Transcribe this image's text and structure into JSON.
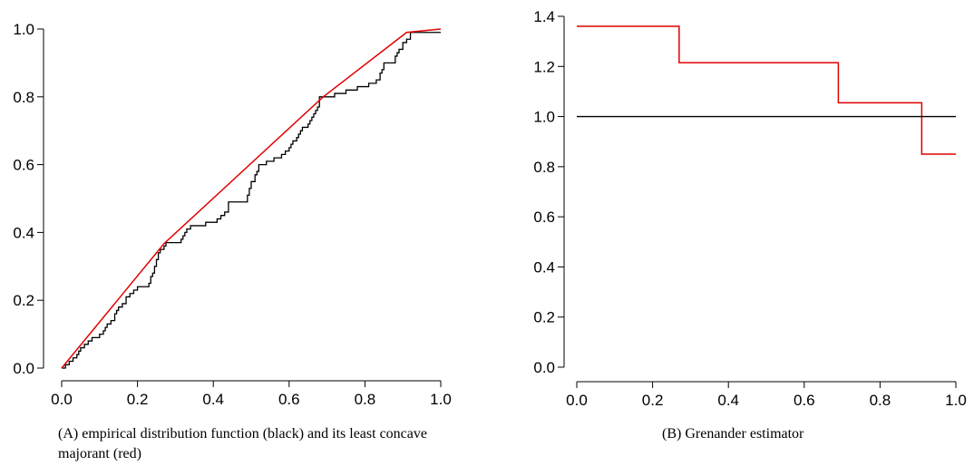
{
  "chart_data": [
    {
      "type": "line",
      "caption": "(A) empirical distribution function (black) and its least concave majorant (red)",
      "xlim": [
        0,
        1
      ],
      "ylim": [
        0,
        1
      ],
      "x_ticks": [
        "0.0",
        "0.2",
        "0.4",
        "0.6",
        "0.8",
        "1.0"
      ],
      "y_ticks": [
        "0.0",
        "0.2",
        "0.4",
        "0.6",
        "0.8",
        "1.0"
      ],
      "grid": false,
      "series": [
        {
          "color": "#000000",
          "step": true,
          "x": [
            0,
            0.01,
            0.015,
            0.02,
            0.025,
            0.03,
            0.04,
            0.045,
            0.05,
            0.06,
            0.07,
            0.08,
            0.09,
            0.1,
            0.11,
            0.115,
            0.12,
            0.13,
            0.14,
            0.145,
            0.15,
            0.16,
            0.17,
            0.18,
            0.19,
            0.2,
            0.21,
            0.23,
            0.235,
            0.24,
            0.245,
            0.25,
            0.255,
            0.26,
            0.27,
            0.275,
            0.28,
            0.31,
            0.315,
            0.32,
            0.325,
            0.33,
            0.34,
            0.37,
            0.38,
            0.39,
            0.4,
            0.41,
            0.42,
            0.43,
            0.44,
            0.47,
            0.48,
            0.49,
            0.495,
            0.5,
            0.51,
            0.515,
            0.52,
            0.53,
            0.54,
            0.55,
            0.56,
            0.57,
            0.58,
            0.59,
            0.6,
            0.605,
            0.61,
            0.62,
            0.625,
            0.63,
            0.635,
            0.64,
            0.645,
            0.65,
            0.655,
            0.66,
            0.665,
            0.67,
            0.675,
            0.68,
            0.69,
            0.71,
            0.72,
            0.74,
            0.75,
            0.77,
            0.78,
            0.8,
            0.81,
            0.82,
            0.83,
            0.84,
            0.845,
            0.85,
            0.86,
            0.87,
            0.88,
            0.885,
            0.89,
            0.9,
            0.91,
            0.92,
            0.98,
            1.0
          ],
          "y": [
            0,
            0.01,
            0.01,
            0.02,
            0.02,
            0.03,
            0.04,
            0.05,
            0.06,
            0.07,
            0.08,
            0.09,
            0.09,
            0.1,
            0.11,
            0.12,
            0.13,
            0.14,
            0.16,
            0.17,
            0.18,
            0.19,
            0.21,
            0.22,
            0.23,
            0.24,
            0.24,
            0.25,
            0.27,
            0.28,
            0.3,
            0.32,
            0.34,
            0.35,
            0.36,
            0.37,
            0.37,
            0.37,
            0.38,
            0.39,
            0.4,
            0.41,
            0.42,
            0.42,
            0.43,
            0.43,
            0.43,
            0.44,
            0.45,
            0.46,
            0.49,
            0.49,
            0.49,
            0.51,
            0.53,
            0.55,
            0.57,
            0.58,
            0.6,
            0.6,
            0.61,
            0.61,
            0.62,
            0.62,
            0.63,
            0.64,
            0.65,
            0.66,
            0.67,
            0.68,
            0.69,
            0.7,
            0.71,
            0.71,
            0.71,
            0.72,
            0.73,
            0.74,
            0.75,
            0.76,
            0.77,
            0.8,
            0.8,
            0.8,
            0.81,
            0.81,
            0.82,
            0.82,
            0.83,
            0.83,
            0.84,
            0.84,
            0.85,
            0.87,
            0.88,
            0.9,
            0.9,
            0.9,
            0.92,
            0.93,
            0.94,
            0.96,
            0.97,
            0.99,
            0.99,
            0.99
          ]
        },
        {
          "color": "#e00000",
          "step": false,
          "x": [
            0,
            0.27,
            0.69,
            0.91,
            1.0
          ],
          "y": [
            0,
            0.367,
            0.8,
            0.99,
            1.0
          ]
        }
      ]
    },
    {
      "type": "line",
      "caption": "(B) Grenander estimator",
      "xlim": [
        0,
        1
      ],
      "ylim": [
        0,
        1.4
      ],
      "x_ticks": [
        "0.0",
        "0.2",
        "0.4",
        "0.6",
        "0.8",
        "1.0"
      ],
      "y_ticks": [
        "0.0",
        "0.2",
        "0.4",
        "0.6",
        "0.8",
        "1.0",
        "1.2",
        "1.4"
      ],
      "grid": false,
      "series": [
        {
          "color": "#e00000",
          "step": true,
          "x": [
            0,
            0.27,
            0.69,
            0.91,
            1.0
          ],
          "y": [
            1.36,
            1.215,
            1.055,
            0.85,
            0.85
          ]
        },
        {
          "color": "#000000",
          "step": false,
          "x": [
            0,
            1
          ],
          "y": [
            1.0,
            1.0
          ]
        }
      ]
    }
  ]
}
